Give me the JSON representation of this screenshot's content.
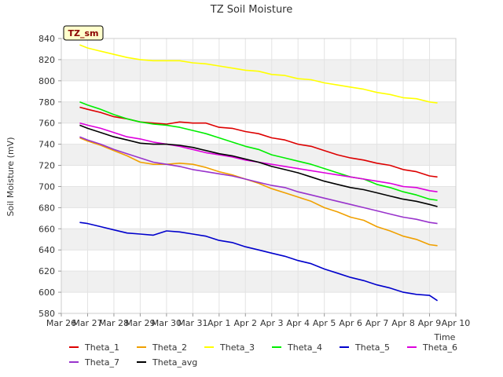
{
  "chart_data": {
    "type": "line",
    "title": "TZ Soil Moisture",
    "badge": "TZ_sm",
    "xlabel": "Time",
    "ylabel": "Soil Moisture (mV)",
    "ylim": [
      580,
      840
    ],
    "yticks": [
      580,
      600,
      620,
      640,
      660,
      680,
      700,
      720,
      740,
      760,
      780,
      800,
      820,
      840
    ],
    "xlim": [
      0,
      15
    ],
    "xticks": [
      {
        "pos": 0,
        "label": "Mar 26"
      },
      {
        "pos": 1,
        "label": "Mar 27"
      },
      {
        "pos": 2,
        "label": "Mar 28"
      },
      {
        "pos": 3,
        "label": "Mar 29"
      },
      {
        "pos": 4,
        "label": "Mar 30"
      },
      {
        "pos": 5,
        "label": "Mar 31"
      },
      {
        "pos": 6,
        "label": "Apr 1"
      },
      {
        "pos": 7,
        "label": "Apr 2"
      },
      {
        "pos": 8,
        "label": "Apr 3"
      },
      {
        "pos": 9,
        "label": "Apr 4"
      },
      {
        "pos": 10,
        "label": "Apr 5"
      },
      {
        "pos": 11,
        "label": "Apr 6"
      },
      {
        "pos": 12,
        "label": "Apr 7"
      },
      {
        "pos": 13,
        "label": "Apr 8"
      },
      {
        "pos": 14,
        "label": "Apr 9"
      },
      {
        "pos": 15,
        "label": "Apr 10"
      }
    ],
    "x": [
      0.7,
      1.0,
      1.5,
      2.0,
      2.5,
      3.0,
      3.5,
      4.0,
      4.5,
      5.0,
      5.5,
      6.0,
      6.5,
      7.0,
      7.5,
      8.0,
      8.5,
      9.0,
      9.5,
      10.0,
      10.5,
      11.0,
      11.5,
      12.0,
      12.5,
      13.0,
      13.5,
      14.0,
      14.3
    ],
    "series": [
      {
        "name": "Theta_1",
        "color": "#dd0000",
        "values": [
          775,
          773,
          770,
          766,
          764,
          761,
          760,
          759,
          761,
          760,
          760,
          756,
          755,
          752,
          750,
          746,
          744,
          740,
          738,
          734,
          730,
          727,
          725,
          722,
          720,
          716,
          714,
          710,
          709
        ]
      },
      {
        "name": "Theta_2",
        "color": "#f0a000",
        "values": [
          746,
          743,
          739,
          734,
          729,
          723,
          721,
          721,
          722,
          721,
          718,
          714,
          711,
          707,
          703,
          698,
          694,
          690,
          686,
          680,
          676,
          671,
          668,
          662,
          658,
          653,
          650,
          645,
          644
        ]
      },
      {
        "name": "Theta_3",
        "color": "#ffff00",
        "values": [
          834,
          831,
          828,
          825,
          822,
          820,
          819,
          819,
          819,
          817,
          816,
          814,
          812,
          810,
          809,
          806,
          805,
          802,
          801,
          798,
          796,
          794,
          792,
          789,
          787,
          784,
          783,
          780,
          779
        ]
      },
      {
        "name": "Theta_4",
        "color": "#00ee00",
        "values": [
          780,
          777,
          773,
          768,
          764,
          761,
          759,
          758,
          756,
          753,
          750,
          746,
          742,
          738,
          735,
          730,
          727,
          724,
          721,
          717,
          713,
          709,
          707,
          702,
          699,
          695,
          692,
          688,
          687
        ]
      },
      {
        "name": "Theta_5",
        "color": "#0000cc",
        "values": [
          666,
          665,
          662,
          659,
          656,
          655,
          654,
          658,
          657,
          655,
          653,
          649,
          647,
          643,
          640,
          637,
          634,
          630,
          627,
          622,
          618,
          614,
          611,
          607,
          604,
          600,
          598,
          597,
          592
        ]
      },
      {
        "name": "Theta_6",
        "color": "#dd00dd",
        "values": [
          760,
          758,
          755,
          751,
          747,
          745,
          742,
          740,
          738,
          735,
          732,
          730,
          728,
          725,
          723,
          721,
          719,
          717,
          715,
          713,
          711,
          709,
          707,
          705,
          703,
          700,
          699,
          696,
          695
        ]
      },
      {
        "name": "Theta_7",
        "color": "#9933cc",
        "values": [
          747,
          744,
          740,
          735,
          731,
          727,
          723,
          721,
          719,
          716,
          714,
          712,
          710,
          707,
          704,
          701,
          699,
          695,
          692,
          689,
          686,
          683,
          680,
          677,
          674,
          671,
          669,
          666,
          665
        ]
      },
      {
        "name": "Theta_avg",
        "color": "#000000",
        "values": [
          758,
          755,
          751,
          747,
          744,
          741,
          740,
          740,
          739,
          737,
          734,
          731,
          729,
          726,
          723,
          719,
          716,
          713,
          709,
          705,
          702,
          699,
          697,
          694,
          691,
          688,
          686,
          683,
          681
        ]
      }
    ],
    "legend_position": "bottom",
    "grid": true
  }
}
